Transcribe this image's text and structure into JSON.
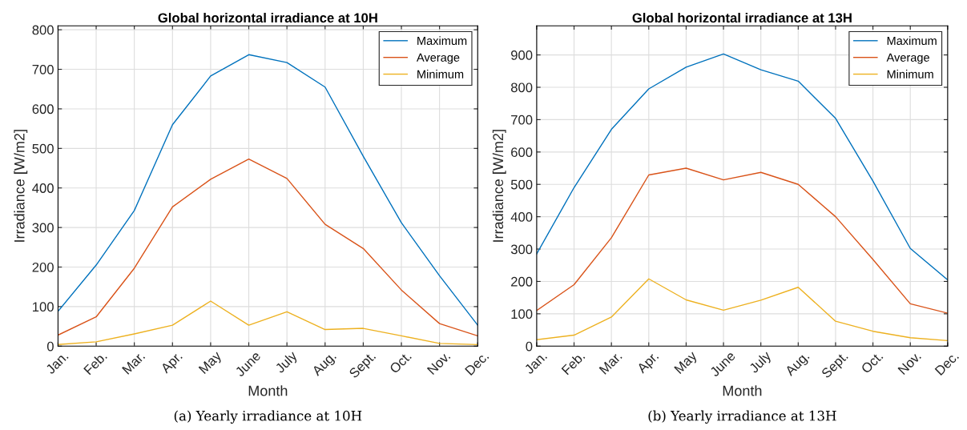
{
  "chart_data": [
    {
      "type": "line",
      "title": "Global horizontal irradiance at 10H",
      "xlabel": "Month",
      "ylabel": "Irradiance [W/m2]",
      "categories": [
        "Jan.",
        "Feb.",
        "Mar.",
        "Apr.",
        "May",
        "June",
        "July",
        "Aug.",
        "Sept.",
        "Oct.",
        "Nov.",
        "Dec."
      ],
      "series": [
        {
          "name": "Maximum",
          "color": "#0072bd",
          "values": [
            88,
            205,
            343,
            560,
            683,
            737,
            717,
            655,
            480,
            312,
            178,
            53
          ]
        },
        {
          "name": "Average",
          "color": "#d95319",
          "values": [
            28,
            74,
            197,
            352,
            422,
            473,
            424,
            308,
            247,
            142,
            57,
            26
          ]
        },
        {
          "name": "Minimum",
          "color": "#edb120",
          "values": [
            4,
            11,
            31,
            53,
            114,
            53,
            87,
            42,
            45,
            26,
            7,
            4
          ]
        }
      ],
      "ylim": [
        0,
        810
      ],
      "yticks": [
        0,
        100,
        200,
        300,
        400,
        500,
        600,
        700,
        800
      ],
      "grid": true,
      "legend": "top right",
      "annotations": [
        "(a) Yearly irradiance at 10H"
      ]
    },
    {
      "type": "line",
      "title": "Global horizontal irradiance at 13H",
      "xlabel": "Month",
      "ylabel": "Irradiance [W/m2]",
      "categories": [
        "Jan.",
        "Feb.",
        "Mar.",
        "Apr.",
        "May",
        "June",
        "July",
        "Aug.",
        "Sept.",
        "Oct.",
        "Nov.",
        "Dec."
      ],
      "series": [
        {
          "name": "Maximum",
          "color": "#0072bd",
          "values": [
            285,
            490,
            670,
            795,
            862,
            903,
            854,
            819,
            704,
            510,
            302,
            205
          ]
        },
        {
          "name": "Average",
          "color": "#d95319",
          "values": [
            110,
            190,
            335,
            529,
            550,
            514,
            537,
            500,
            400,
            268,
            131,
            102
          ]
        },
        {
          "name": "Minimum",
          "color": "#edb120",
          "values": [
            20,
            34,
            90,
            208,
            143,
            111,
            142,
            182,
            77,
            46,
            26,
            17
          ]
        }
      ],
      "ylim": [
        0,
        990
      ],
      "yticks": [
        0,
        100,
        200,
        300,
        400,
        500,
        600,
        700,
        800,
        900
      ],
      "grid": true,
      "legend": "top right",
      "annotations": [
        "(b) Yearly irradiance at 13H"
      ]
    }
  ]
}
